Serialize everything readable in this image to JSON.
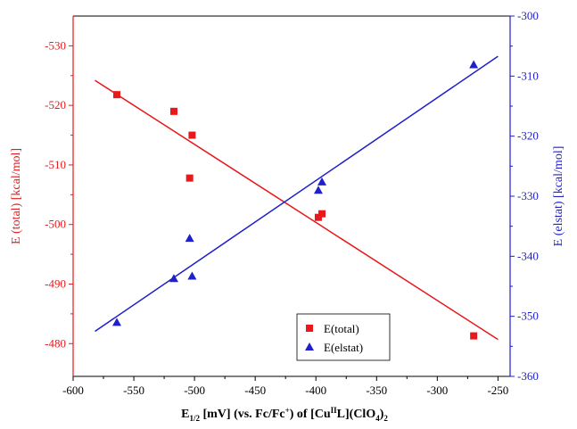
{
  "chart_data": {
    "type": "scatter",
    "xlabel_parts": {
      "main": "E",
      "main_sub": "1/2",
      "mid": " [mV] (vs. Fc/Fc",
      "mid_sup": "+",
      "tail1": ") of [Cu",
      "tail_sup": "II",
      "tail2": "L](ClO",
      "tail_sub": "4",
      "tail3": ")",
      "tail_sub2": "2"
    },
    "xlim": [
      -600,
      -240
    ],
    "xticks": [
      -600,
      -550,
      -500,
      -450,
      -400,
      -350,
      -300,
      -250
    ],
    "left_axis": {
      "label": "E (total) [kcal/mol]",
      "color": "#e8191c",
      "ylim": [
        -474.5,
        -535
      ],
      "ticks": [
        -480,
        -490,
        -500,
        -510,
        -520,
        -530
      ]
    },
    "right_axis": {
      "label": "E (elstat) [kcal/mol]",
      "color": "#1f1fcc",
      "ylim": [
        -360,
        -300
      ],
      "ticks": [
        -360,
        -350,
        -340,
        -330,
        -320,
        -310,
        -300
      ]
    },
    "series": [
      {
        "name": "E(total)",
        "axis": "left",
        "marker": "square",
        "color": "#e8191c",
        "x": [
          -564,
          -517,
          -502,
          -504,
          -398,
          -395,
          -270
        ],
        "y": [
          -521.8,
          -519.0,
          -515.0,
          -507.8,
          -501.2,
          -501.8,
          -481.3
        ],
        "fit": {
          "x": [
            -582,
            -250
          ],
          "y": [
            -524.2,
            -480.7
          ]
        }
      },
      {
        "name": "E(elstat)",
        "axis": "right",
        "marker": "triangle",
        "color": "#1f1fcc",
        "x": [
          -564,
          -517,
          -502,
          -504,
          -398,
          -395,
          -270
        ],
        "y": [
          -351.0,
          -343.7,
          -343.3,
          -337.0,
          -329.0,
          -327.6,
          -308.1
        ],
        "fit": {
          "x": [
            -582,
            -250
          ],
          "y": [
            -352.5,
            -306.7
          ]
        }
      }
    ],
    "legend": {
      "position": "lower-right"
    }
  }
}
